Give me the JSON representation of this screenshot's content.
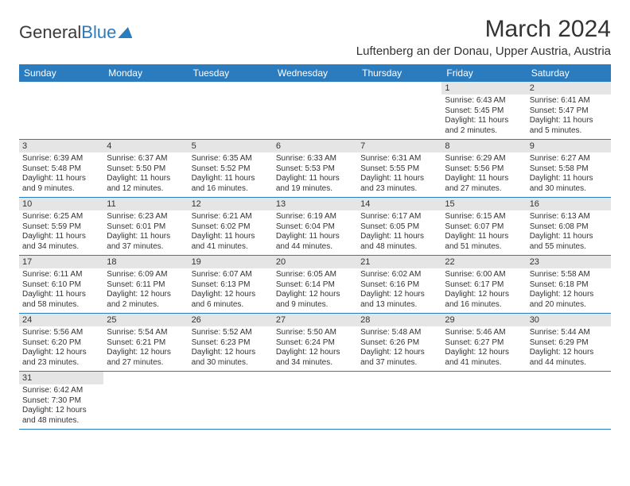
{
  "logo": {
    "part1": "General",
    "part2": "Blue"
  },
  "title": "March 2024",
  "location": "Luftenberg an der Donau, Upper Austria, Austria",
  "colors": {
    "header_bg": "#2b7bbf",
    "header_text": "#ffffff",
    "daynum_bg": "#e5e5e5",
    "row_border": "#2b7bbf",
    "body_text": "#333333",
    "page_bg": "#ffffff"
  },
  "days_of_week": [
    "Sunday",
    "Monday",
    "Tuesday",
    "Wednesday",
    "Thursday",
    "Friday",
    "Saturday"
  ],
  "weeks": [
    [
      {
        "empty": true
      },
      {
        "empty": true
      },
      {
        "empty": true
      },
      {
        "empty": true
      },
      {
        "empty": true
      },
      {
        "num": "1",
        "sunrise": "Sunrise: 6:43 AM",
        "sunset": "Sunset: 5:45 PM",
        "daylight": "Daylight: 11 hours and 2 minutes."
      },
      {
        "num": "2",
        "sunrise": "Sunrise: 6:41 AM",
        "sunset": "Sunset: 5:47 PM",
        "daylight": "Daylight: 11 hours and 5 minutes."
      }
    ],
    [
      {
        "num": "3",
        "sunrise": "Sunrise: 6:39 AM",
        "sunset": "Sunset: 5:48 PM",
        "daylight": "Daylight: 11 hours and 9 minutes."
      },
      {
        "num": "4",
        "sunrise": "Sunrise: 6:37 AM",
        "sunset": "Sunset: 5:50 PM",
        "daylight": "Daylight: 11 hours and 12 minutes."
      },
      {
        "num": "5",
        "sunrise": "Sunrise: 6:35 AM",
        "sunset": "Sunset: 5:52 PM",
        "daylight": "Daylight: 11 hours and 16 minutes."
      },
      {
        "num": "6",
        "sunrise": "Sunrise: 6:33 AM",
        "sunset": "Sunset: 5:53 PM",
        "daylight": "Daylight: 11 hours and 19 minutes."
      },
      {
        "num": "7",
        "sunrise": "Sunrise: 6:31 AM",
        "sunset": "Sunset: 5:55 PM",
        "daylight": "Daylight: 11 hours and 23 minutes."
      },
      {
        "num": "8",
        "sunrise": "Sunrise: 6:29 AM",
        "sunset": "Sunset: 5:56 PM",
        "daylight": "Daylight: 11 hours and 27 minutes."
      },
      {
        "num": "9",
        "sunrise": "Sunrise: 6:27 AM",
        "sunset": "Sunset: 5:58 PM",
        "daylight": "Daylight: 11 hours and 30 minutes."
      }
    ],
    [
      {
        "num": "10",
        "sunrise": "Sunrise: 6:25 AM",
        "sunset": "Sunset: 5:59 PM",
        "daylight": "Daylight: 11 hours and 34 minutes."
      },
      {
        "num": "11",
        "sunrise": "Sunrise: 6:23 AM",
        "sunset": "Sunset: 6:01 PM",
        "daylight": "Daylight: 11 hours and 37 minutes."
      },
      {
        "num": "12",
        "sunrise": "Sunrise: 6:21 AM",
        "sunset": "Sunset: 6:02 PM",
        "daylight": "Daylight: 11 hours and 41 minutes."
      },
      {
        "num": "13",
        "sunrise": "Sunrise: 6:19 AM",
        "sunset": "Sunset: 6:04 PM",
        "daylight": "Daylight: 11 hours and 44 minutes."
      },
      {
        "num": "14",
        "sunrise": "Sunrise: 6:17 AM",
        "sunset": "Sunset: 6:05 PM",
        "daylight": "Daylight: 11 hours and 48 minutes."
      },
      {
        "num": "15",
        "sunrise": "Sunrise: 6:15 AM",
        "sunset": "Sunset: 6:07 PM",
        "daylight": "Daylight: 11 hours and 51 minutes."
      },
      {
        "num": "16",
        "sunrise": "Sunrise: 6:13 AM",
        "sunset": "Sunset: 6:08 PM",
        "daylight": "Daylight: 11 hours and 55 minutes."
      }
    ],
    [
      {
        "num": "17",
        "sunrise": "Sunrise: 6:11 AM",
        "sunset": "Sunset: 6:10 PM",
        "daylight": "Daylight: 11 hours and 58 minutes."
      },
      {
        "num": "18",
        "sunrise": "Sunrise: 6:09 AM",
        "sunset": "Sunset: 6:11 PM",
        "daylight": "Daylight: 12 hours and 2 minutes."
      },
      {
        "num": "19",
        "sunrise": "Sunrise: 6:07 AM",
        "sunset": "Sunset: 6:13 PM",
        "daylight": "Daylight: 12 hours and 6 minutes."
      },
      {
        "num": "20",
        "sunrise": "Sunrise: 6:05 AM",
        "sunset": "Sunset: 6:14 PM",
        "daylight": "Daylight: 12 hours and 9 minutes."
      },
      {
        "num": "21",
        "sunrise": "Sunrise: 6:02 AM",
        "sunset": "Sunset: 6:16 PM",
        "daylight": "Daylight: 12 hours and 13 minutes."
      },
      {
        "num": "22",
        "sunrise": "Sunrise: 6:00 AM",
        "sunset": "Sunset: 6:17 PM",
        "daylight": "Daylight: 12 hours and 16 minutes."
      },
      {
        "num": "23",
        "sunrise": "Sunrise: 5:58 AM",
        "sunset": "Sunset: 6:18 PM",
        "daylight": "Daylight: 12 hours and 20 minutes."
      }
    ],
    [
      {
        "num": "24",
        "sunrise": "Sunrise: 5:56 AM",
        "sunset": "Sunset: 6:20 PM",
        "daylight": "Daylight: 12 hours and 23 minutes."
      },
      {
        "num": "25",
        "sunrise": "Sunrise: 5:54 AM",
        "sunset": "Sunset: 6:21 PM",
        "daylight": "Daylight: 12 hours and 27 minutes."
      },
      {
        "num": "26",
        "sunrise": "Sunrise: 5:52 AM",
        "sunset": "Sunset: 6:23 PM",
        "daylight": "Daylight: 12 hours and 30 minutes."
      },
      {
        "num": "27",
        "sunrise": "Sunrise: 5:50 AM",
        "sunset": "Sunset: 6:24 PM",
        "daylight": "Daylight: 12 hours and 34 minutes."
      },
      {
        "num": "28",
        "sunrise": "Sunrise: 5:48 AM",
        "sunset": "Sunset: 6:26 PM",
        "daylight": "Daylight: 12 hours and 37 minutes."
      },
      {
        "num": "29",
        "sunrise": "Sunrise: 5:46 AM",
        "sunset": "Sunset: 6:27 PM",
        "daylight": "Daylight: 12 hours and 41 minutes."
      },
      {
        "num": "30",
        "sunrise": "Sunrise: 5:44 AM",
        "sunset": "Sunset: 6:29 PM",
        "daylight": "Daylight: 12 hours and 44 minutes."
      }
    ],
    [
      {
        "num": "31",
        "sunrise": "Sunrise: 6:42 AM",
        "sunset": "Sunset: 7:30 PM",
        "daylight": "Daylight: 12 hours and 48 minutes."
      },
      {
        "empty": true
      },
      {
        "empty": true
      },
      {
        "empty": true
      },
      {
        "empty": true
      },
      {
        "empty": true
      },
      {
        "empty": true
      }
    ]
  ]
}
